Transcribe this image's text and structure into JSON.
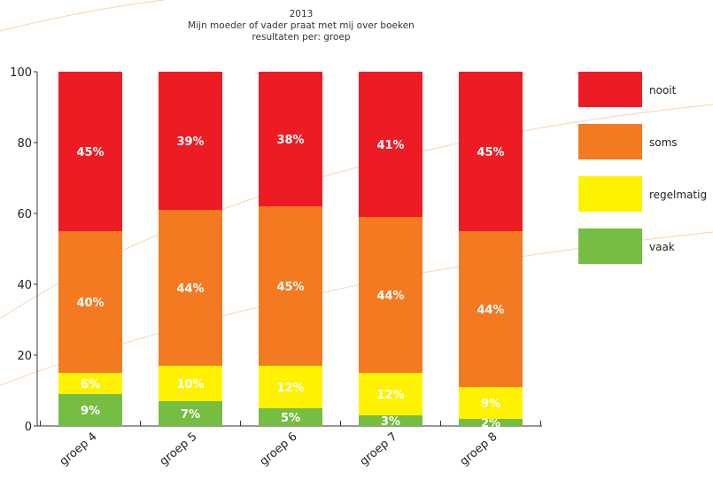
{
  "chart_data": {
    "type": "bar",
    "stacked": true,
    "title": "2013",
    "subtitle": "Mijn moeder of vader praat met mij over boeken",
    "subtitle2": "resultaten per: groep",
    "categories": [
      "groep 4",
      "groep 5",
      "groep 6",
      "groep 7",
      "groep 8"
    ],
    "ylim": [
      0,
      100
    ],
    "yticks": [
      "0",
      "20",
      "40",
      "60",
      "80",
      "100"
    ],
    "grid": false,
    "legend_position": "right",
    "series": [
      {
        "name": "vaak",
        "color": "#76bd43",
        "values": [
          9,
          7,
          5,
          3,
          2
        ],
        "labels": [
          "9%",
          "7%",
          "5%",
          "3%",
          "2%"
        ]
      },
      {
        "name": "regelmatig",
        "color": "#fff200",
        "values": [
          6,
          10,
          12,
          12,
          9
        ],
        "labels": [
          "6%",
          "10%",
          "12%",
          "12%",
          "9%"
        ]
      },
      {
        "name": "soms",
        "color": "#f37a21",
        "values": [
          40,
          44,
          45,
          44,
          44
        ],
        "labels": [
          "40%",
          "44%",
          "45%",
          "44%",
          "44%"
        ]
      },
      {
        "name": "nooit",
        "color": "#ed1c24",
        "values": [
          45,
          39,
          38,
          41,
          45
        ],
        "labels": [
          "45%",
          "39%",
          "38%",
          "41%",
          "45%"
        ]
      }
    ],
    "legend_order": [
      "nooit",
      "soms",
      "regelmatig",
      "vaak"
    ]
  }
}
